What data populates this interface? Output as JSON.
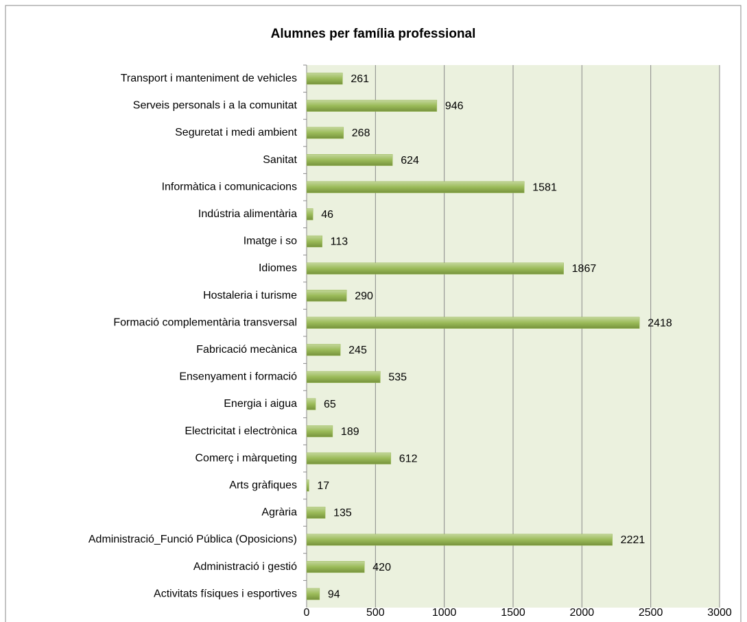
{
  "chart_data": {
    "type": "bar",
    "orientation": "horizontal",
    "title": "Alumnes per família professional",
    "categories": [
      "Transport i manteniment de vehicles",
      "Serveis personals i a la comunitat",
      "Seguretat i medi ambient",
      "Sanitat",
      "Informàtica i comunicacions",
      "Indústria alimentària",
      "Imatge i so",
      "Idiomes",
      "Hostaleria i turisme",
      "Formació complementària transversal",
      "Fabricació mecànica",
      "Ensenyament i formació",
      "Energia i aigua",
      "Electricitat i electrònica",
      "Comerç i màrqueting",
      "Arts gràfiques",
      "Agrària",
      "Administració_Funció Pública (Oposicions)",
      "Administració i gestió",
      "Activitats físiques i esportives"
    ],
    "values": [
      261,
      946,
      268,
      624,
      1581,
      46,
      113,
      1867,
      290,
      2418,
      245,
      535,
      65,
      189,
      612,
      17,
      135,
      2221,
      420,
      94
    ],
    "color": "#9bbb59",
    "xlim": [
      0,
      3000
    ],
    "xticks": [
      0,
      500,
      1000,
      1500,
      2000,
      2500,
      3000
    ],
    "grid": true
  }
}
